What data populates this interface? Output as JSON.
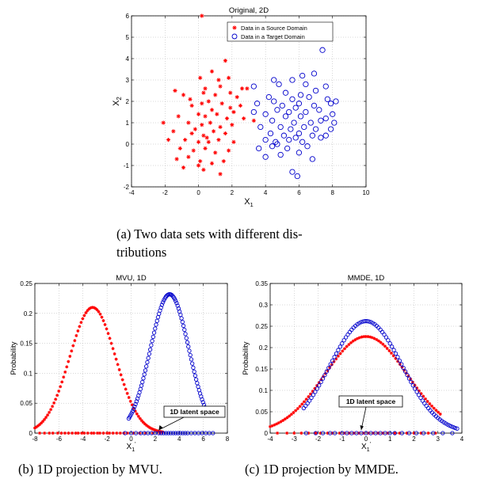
{
  "captions": {
    "a_line1": "(a) Two data sets with different dis-",
    "a_line2": "tributions",
    "b": "(b) 1D projection by MVU.",
    "c": "(c) 1D projection by MMDE."
  },
  "chart_data": [
    {
      "id": "a",
      "type": "scatter",
      "title": "Original, 2D",
      "xlabel": "X",
      "xlabel_sub": "1",
      "ylabel": "X",
      "ylabel_sub": "2",
      "xlim": [
        -4,
        10
      ],
      "ylim": [
        -2,
        6
      ],
      "xticks": [
        -4,
        -2,
        0,
        2,
        4,
        6,
        8,
        10
      ],
      "yticks": [
        -2,
        -1,
        0,
        1,
        2,
        3,
        4,
        5,
        6
      ],
      "grid": true,
      "legend_position": "top-right",
      "series": [
        {
          "name": "Data in a Source Domain",
          "marker": "star",
          "color": "#ff0000",
          "points": [
            [
              0.2,
              6.0
            ],
            [
              1.6,
              3.9
            ],
            [
              1.8,
              3.1
            ],
            [
              0.8,
              3.4
            ],
            [
              1.2,
              3.0
            ],
            [
              0.1,
              3.1
            ],
            [
              0.4,
              2.6
            ],
            [
              1.3,
              2.7
            ],
            [
              -1.4,
              2.5
            ],
            [
              -0.9,
              2.3
            ],
            [
              -0.5,
              2.1
            ],
            [
              0.3,
              2.4
            ],
            [
              1.0,
              2.3
            ],
            [
              1.9,
              2.4
            ],
            [
              2.6,
              2.6
            ],
            [
              2.9,
              2.6
            ],
            [
              2.3,
              2.2
            ],
            [
              2.5,
              1.8
            ],
            [
              -0.4,
              1.8
            ],
            [
              0.2,
              1.9
            ],
            [
              0.6,
              2.0
            ],
            [
              1.4,
              1.9
            ],
            [
              2.1,
              1.5
            ],
            [
              0.8,
              1.6
            ],
            [
              -1.2,
              1.3
            ],
            [
              0.0,
              1.4
            ],
            [
              0.4,
              1.3
            ],
            [
              1.1,
              1.4
            ],
            [
              1.7,
              1.2
            ],
            [
              2.7,
              1.2
            ],
            [
              3.3,
              1.1
            ],
            [
              -2.1,
              1.0
            ],
            [
              -0.6,
              1.0
            ],
            [
              0.2,
              0.9
            ],
            [
              0.7,
              1.0
            ],
            [
              1.3,
              0.8
            ],
            [
              2.0,
              0.9
            ],
            [
              -1.5,
              0.6
            ],
            [
              -0.4,
              0.5
            ],
            [
              0.3,
              0.4
            ],
            [
              0.9,
              0.6
            ],
            [
              1.6,
              0.5
            ],
            [
              -1.8,
              0.2
            ],
            [
              -0.8,
              0.2
            ],
            [
              0.0,
              0.1
            ],
            [
              0.6,
              0.1
            ],
            [
              1.2,
              0.2
            ],
            [
              2.1,
              0.1
            ],
            [
              -1.1,
              -0.2
            ],
            [
              -0.3,
              -0.3
            ],
            [
              0.4,
              -0.2
            ],
            [
              1.0,
              -0.4
            ],
            [
              1.8,
              -0.3
            ],
            [
              -1.3,
              -0.7
            ],
            [
              -0.6,
              -0.6
            ],
            [
              0.1,
              -0.8
            ],
            [
              0.8,
              -0.9
            ],
            [
              1.5,
              -0.8
            ],
            [
              -0.9,
              -1.1
            ],
            [
              0.3,
              -1.2
            ],
            [
              1.3,
              -1.4
            ],
            [
              0.0,
              -1.0
            ],
            [
              -0.2,
              0.7
            ],
            [
              1.9,
              1.7
            ],
            [
              0.5,
              0.3
            ]
          ]
        },
        {
          "name": "Data in a Target Domain",
          "marker": "circle",
          "color": "#0000cc",
          "points": [
            [
              7.4,
              4.4
            ],
            [
              4.5,
              3.0
            ],
            [
              5.6,
              3.0
            ],
            [
              6.2,
              3.2
            ],
            [
              6.9,
              3.3
            ],
            [
              4.8,
              2.8
            ],
            [
              3.3,
              2.7
            ],
            [
              6.4,
              2.8
            ],
            [
              7.6,
              2.7
            ],
            [
              5.2,
              2.4
            ],
            [
              6.1,
              2.3
            ],
            [
              7.0,
              2.5
            ],
            [
              4.2,
              2.2
            ],
            [
              5.6,
              2.1
            ],
            [
              6.6,
              2.2
            ],
            [
              7.7,
              2.1
            ],
            [
              8.2,
              2.0
            ],
            [
              3.5,
              1.9
            ],
            [
              4.5,
              2.0
            ],
            [
              5.0,
              1.8
            ],
            [
              6.0,
              1.9
            ],
            [
              6.9,
              1.8
            ],
            [
              7.9,
              1.9
            ],
            [
              4.7,
              1.6
            ],
            [
              5.4,
              1.5
            ],
            [
              5.8,
              1.7
            ],
            [
              6.4,
              1.5
            ],
            [
              7.2,
              1.6
            ],
            [
              8.0,
              1.4
            ],
            [
              3.3,
              1.5
            ],
            [
              4.0,
              1.4
            ],
            [
              5.2,
              1.3
            ],
            [
              6.1,
              1.3
            ],
            [
              7.6,
              1.2
            ],
            [
              4.4,
              1.1
            ],
            [
              5.7,
              1.0
            ],
            [
              6.7,
              1.0
            ],
            [
              7.3,
              1.1
            ],
            [
              8.1,
              1.0
            ],
            [
              3.7,
              0.8
            ],
            [
              4.9,
              0.8
            ],
            [
              5.5,
              0.7
            ],
            [
              6.3,
              0.8
            ],
            [
              7.0,
              0.7
            ],
            [
              7.9,
              0.7
            ],
            [
              4.3,
              0.5
            ],
            [
              5.1,
              0.4
            ],
            [
              6.0,
              0.5
            ],
            [
              6.8,
              0.4
            ],
            [
              4.0,
              0.2
            ],
            [
              4.6,
              0.1
            ],
            [
              5.4,
              0.2
            ],
            [
              6.2,
              0.1
            ],
            [
              7.3,
              0.3
            ],
            [
              3.6,
              -0.2
            ],
            [
              4.4,
              -0.1
            ],
            [
              5.3,
              -0.2
            ],
            [
              6.5,
              -0.1
            ],
            [
              4.0,
              -0.6
            ],
            [
              4.9,
              -0.5
            ],
            [
              6.0,
              -0.4
            ],
            [
              6.8,
              -0.7
            ],
            [
              5.6,
              -1.3
            ],
            [
              5.9,
              -1.5
            ],
            [
              7.6,
              0.4
            ],
            [
              5.8,
              0.3
            ],
            [
              4.7,
              0.0
            ]
          ]
        }
      ]
    },
    {
      "id": "b",
      "type": "line",
      "title": "MVU, 1D",
      "xlabel": "X",
      "xlabel_sub": "1",
      "xlabel_prime": "'",
      "ylabel": "Probability",
      "xlim": [
        -8,
        8
      ],
      "ylim": [
        0,
        0.25
      ],
      "xticks": [
        -8,
        -6,
        -4,
        -2,
        0,
        2,
        4,
        6,
        8
      ],
      "yticks": [
        0,
        0.05,
        0.1,
        0.15,
        0.2,
        0.25
      ],
      "grid": true,
      "annotation": {
        "text": "1D latent space",
        "arrow_to_x": 2.3
      },
      "series": [
        {
          "name": "",
          "marker": "star",
          "color": "#ff0000",
          "gaussian": {
            "mean": -3.2,
            "std": 1.9,
            "peak": 0.21
          },
          "x_range": [
            -8,
            2.6
          ],
          "rug": [
            -7.6,
            -7.2,
            -6.8,
            -6.5,
            -6.1,
            -5.8,
            -5.5,
            -5.2,
            -4.9,
            -4.6,
            -4.4,
            -4.1,
            -3.9,
            -3.6,
            -3.3,
            -3.1,
            -2.8,
            -2.6,
            -2.3,
            -2.0,
            -1.8,
            -1.5,
            -1.2,
            -0.9,
            -0.6,
            -0.3,
            0.2,
            0.7,
            1.2,
            1.8,
            2.4
          ]
        },
        {
          "name": "",
          "marker": "circle",
          "color": "#0000cc",
          "gaussian": {
            "mean": 3.2,
            "std": 1.6,
            "peak": 0.232
          },
          "x_range": [
            -0.2,
            6.3
          ],
          "rug": [
            -0.5,
            0.0,
            0.4,
            0.8,
            1.1,
            1.4,
            1.7,
            2.0,
            2.3,
            2.5,
            2.7,
            2.9,
            3.1,
            3.3,
            3.5,
            3.7,
            3.9,
            4.1,
            4.3,
            4.5,
            4.7,
            5.0,
            5.3,
            5.6,
            5.9,
            6.2,
            6.5,
            6.8
          ]
        }
      ]
    },
    {
      "id": "c",
      "type": "line",
      "title": "MMDE, 1D",
      "xlabel": "X",
      "xlabel_sub": "1",
      "xlabel_prime": "'",
      "ylabel": "Probability",
      "xlim": [
        -4,
        4
      ],
      "ylim": [
        0,
        0.35
      ],
      "xticks": [
        -4,
        -3,
        -2,
        -1,
        0,
        1,
        2,
        3,
        4
      ],
      "yticks": [
        0,
        0.05,
        0.1,
        0.15,
        0.2,
        0.25,
        0.3,
        0.35
      ],
      "grid": true,
      "annotation": {
        "text": "1D latent space",
        "arrow_to_x": -0.2
      },
      "series": [
        {
          "name": "",
          "marker": "star",
          "color": "#ff0000",
          "gaussian": {
            "mean": 0.0,
            "std": 1.72,
            "peak": 0.226
          },
          "x_range": [
            -4,
            3.1
          ],
          "rug": [
            -3.7,
            -3.3,
            -3.0,
            -2.7,
            -2.4,
            -2.1,
            -1.9,
            -1.6,
            -1.4,
            -1.1,
            -0.9,
            -0.7,
            -0.5,
            -0.3,
            -0.1,
            0.1,
            0.3,
            0.5,
            0.7,
            0.9,
            1.2,
            1.4,
            1.7,
            2.0,
            2.3,
            2.6,
            2.9
          ]
        },
        {
          "name": "",
          "marker": "circle",
          "color": "#0000cc",
          "gaussian": {
            "mean": 0.0,
            "std": 1.5,
            "peak": 0.262
          },
          "x_range": [
            -2.6,
            3.8
          ],
          "rug": [
            -2.5,
            -2.1,
            -1.8,
            -1.5,
            -1.3,
            -1.0,
            -0.8,
            -0.6,
            -0.4,
            -0.2,
            0.0,
            0.2,
            0.4,
            0.6,
            0.8,
            1.0,
            1.2,
            1.5,
            1.8,
            2.1,
            2.4,
            2.8,
            3.2,
            3.6
          ]
        }
      ]
    }
  ]
}
